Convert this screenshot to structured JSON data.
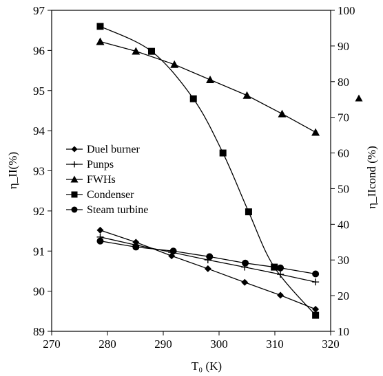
{
  "chart_data": {
    "type": "line",
    "title": "",
    "xlabel": "T₀ (K)",
    "ylabel_left": "η_II(%)",
    "ylabel_right": "η_IIcond (%)",
    "xlim": [
      270,
      320
    ],
    "ylim_left": [
      89,
      97
    ],
    "ylim_right": [
      10,
      100
    ],
    "x_ticks": [
      "270",
      "280",
      "290",
      "300",
      "310",
      "320"
    ],
    "y_left_ticks": [
      "89",
      "90",
      "91",
      "92",
      "93",
      "94",
      "95",
      "96",
      "97"
    ],
    "y_right_ticks": [
      "10",
      "20",
      "30",
      "40",
      "50",
      "60",
      "70",
      "80",
      "90",
      "100"
    ],
    "grid": false,
    "legend_position": "center-left",
    "right_axis_marker": "triangle",
    "series": [
      {
        "name": "Duel burner",
        "marker": "diamond",
        "axis": "left",
        "smooth": false,
        "x": [
          278.7,
          285.1,
          291.5,
          298.0,
          304.6,
          311.0,
          317.3
        ],
        "y": [
          91.52,
          91.22,
          90.88,
          90.56,
          90.22,
          89.9,
          89.55
        ]
      },
      {
        "name": "Punps",
        "marker": "plus",
        "axis": "left",
        "smooth": false,
        "x": [
          278.7,
          285.1,
          291.5,
          298.0,
          304.6,
          311.0,
          317.3
        ],
        "y": [
          91.35,
          91.15,
          90.97,
          90.78,
          90.6,
          90.42,
          90.23
        ]
      },
      {
        "name": "FWHs",
        "marker": "triangle",
        "axis": "left",
        "smooth": false,
        "x": [
          278.7,
          285.1,
          292.0,
          298.4,
          305.0,
          311.3,
          317.3
        ],
        "y": [
          96.22,
          95.98,
          95.65,
          95.27,
          94.88,
          94.42,
          93.96
        ]
      },
      {
        "name": "Condenser",
        "marker": "square",
        "axis": "right",
        "smooth": true,
        "x": [
          278.7,
          287.9,
          295.4,
          300.7,
          305.3,
          309.9,
          317.3
        ],
        "y": [
          95.5,
          88.5,
          75.2,
          60.0,
          43.5,
          28.0,
          14.5
        ]
      },
      {
        "name": "Steam turbine",
        "marker": "circle",
        "axis": "left",
        "smooth": false,
        "x": [
          278.7,
          285.1,
          291.8,
          298.3,
          304.7,
          311.0,
          317.3
        ],
        "y": [
          91.25,
          91.1,
          91.0,
          90.86,
          90.7,
          90.58,
          90.43
        ]
      }
    ]
  }
}
